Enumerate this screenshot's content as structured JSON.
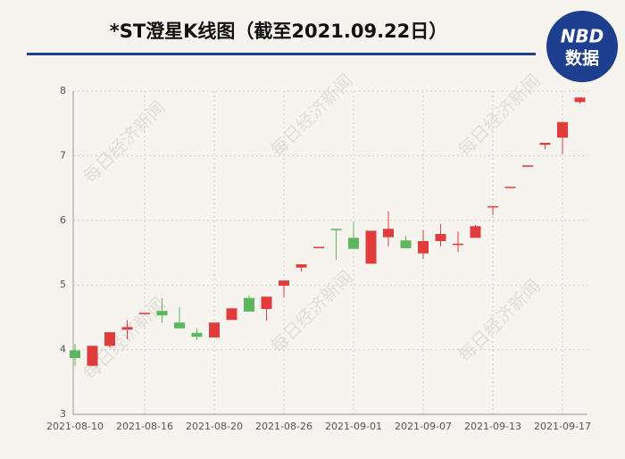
{
  "chart_data": {
    "type": "candlestick",
    "title": "*ST澄星K线图（截至2021.09.22日）",
    "logo": {
      "top": "NBD",
      "bottom": "数据"
    },
    "watermark": "每日经济新闻",
    "categories": [
      "2021-08-10",
      null,
      null,
      null,
      "2021-08-16",
      null,
      null,
      null,
      "2021-08-20",
      null,
      null,
      null,
      "2021-08-26",
      null,
      null,
      null,
      "2021-09-01",
      null,
      null,
      null,
      "2021-09-07",
      null,
      null,
      null,
      "2021-09-13",
      null,
      null,
      null,
      "2021-09-17",
      null
    ],
    "open": [
      3.99,
      3.75,
      4.06,
      4.31,
      4.57,
      4.6,
      4.42,
      4.26,
      4.19,
      4.46,
      4.8,
      4.63,
      4.99,
      5.27,
      5.59,
      5.87,
      5.73,
      5.33,
      5.74,
      5.69,
      5.49,
      5.68,
      5.63,
      5.73,
      6.2,
      6.52,
      6.85,
      7.17,
      7.28,
      7.83
    ],
    "high": [
      4.09,
      4.06,
      4.27,
      4.45,
      4.57,
      4.8,
      4.66,
      4.33,
      4.42,
      4.64,
      4.84,
      4.82,
      5.07,
      5.32,
      5.59,
      5.87,
      5.98,
      5.84,
      6.14,
      5.76,
      5.85,
      5.94,
      5.83,
      5.93,
      6.22,
      6.52,
      6.85,
      7.2,
      7.53,
      7.9
    ],
    "low": [
      3.75,
      3.75,
      4.03,
      4.16,
      4.57,
      4.42,
      4.33,
      4.15,
      4.19,
      4.46,
      4.59,
      4.45,
      4.81,
      5.21,
      5.59,
      5.39,
      5.56,
      5.33,
      5.6,
      5.57,
      5.4,
      5.6,
      5.51,
      5.73,
      6.08,
      6.52,
      6.85,
      7.1,
      7.03,
      7.81
    ],
    "close": [
      3.87,
      4.06,
      4.27,
      4.35,
      4.57,
      4.53,
      4.33,
      4.2,
      4.42,
      4.64,
      4.59,
      4.82,
      5.07,
      5.32,
      5.59,
      5.86,
      5.56,
      5.84,
      5.87,
      5.57,
      5.68,
      5.79,
      5.64,
      5.91,
      6.22,
      6.52,
      6.85,
      7.2,
      7.52,
      7.9
    ],
    "up_color": "#e03c3c",
    "down_color": "#5cb85c",
    "ylim": [
      3,
      8
    ],
    "yticks": [
      3,
      4,
      5,
      6,
      7,
      8
    ],
    "grid": true
  }
}
